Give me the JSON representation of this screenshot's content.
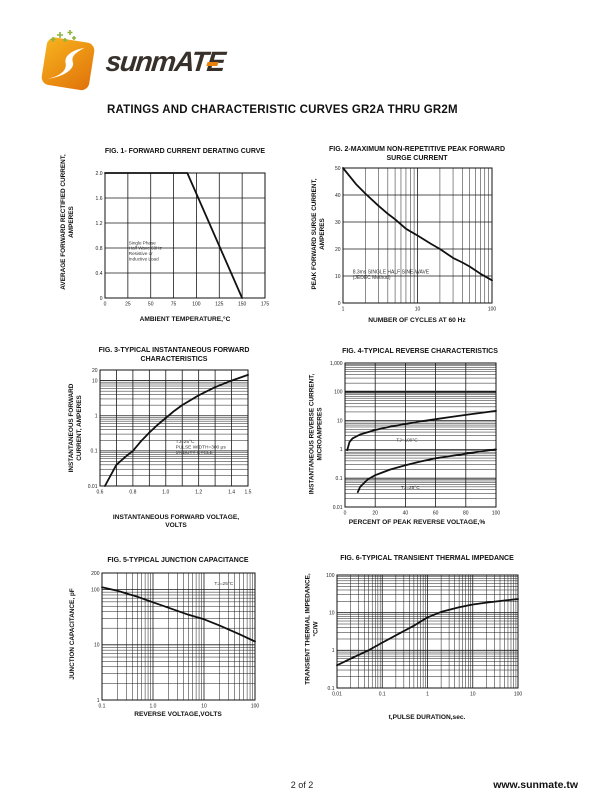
{
  "header": {
    "brand": "sunmATE",
    "title": "RATINGS AND CHARACTERISTIC CURVES GR2A THRU GR2M"
  },
  "footer": {
    "page": "2 of 2",
    "website": "www.sunmate.tw"
  },
  "colors": {
    "logo_orange_light": "#F7B31E",
    "logo_orange_dark": "#E0720A",
    "logo_green": "#8BB53F",
    "ink": "#1a1a1a"
  },
  "chart_data": [
    {
      "type": "line",
      "title": "FIG. 1- FORWARD CURRENT DERATING CURVE",
      "ylabel": "AVERAGE FORWARD RECTIFIED CURRENT,\nAMPERES",
      "xlabel": "AMBIENT TEMPERATURE,°C",
      "x": {
        "scale": "linear",
        "min": 0,
        "max": 175,
        "grid": [
          0,
          25,
          50,
          75,
          100,
          125,
          150,
          175
        ],
        "ticks": [
          [
            0,
            "0"
          ],
          [
            25,
            "25"
          ],
          [
            50,
            "50"
          ],
          [
            75,
            "75"
          ],
          [
            100,
            "100"
          ],
          [
            125,
            "125"
          ],
          [
            150,
            "150"
          ],
          [
            175,
            "175"
          ]
        ]
      },
      "y": {
        "scale": "linear",
        "min": 0,
        "max": 2,
        "grid": [
          0,
          0.4,
          0.8,
          1.2,
          1.6,
          2
        ],
        "ticks": [
          [
            0,
            "0"
          ],
          [
            0.4,
            "0.4"
          ],
          [
            0.8,
            "0.8"
          ],
          [
            1.2,
            "1.2"
          ],
          [
            1.6,
            "1.6"
          ],
          [
            2,
            "2.0"
          ]
        ]
      },
      "series": [
        {
          "name": "derating-curve",
          "points": [
            [
              0,
              2
            ],
            [
              90,
              2
            ],
            [
              150,
              0
            ]
          ]
        }
      ],
      "annotations": [
        {
          "x": 26,
          "y": 0.86,
          "align": "start",
          "size": 4.6,
          "text": "Single Phase\nHalf Wave 60Hz\nResistive or\nInductive Load"
        }
      ]
    },
    {
      "type": "line",
      "title": "FIG. 2-MAXIMUM NON-REPETITIVE PEAK FORWARD\nSURGE CURRENT",
      "ylabel": "PEAK FORWARD SURGE CURRENT,\nAMPERES",
      "xlabel": "NUMBER OF CYCLES AT 60 Hz",
      "x": {
        "scale": "log",
        "min": 1,
        "max": 100,
        "ticks": [
          [
            1,
            "1"
          ],
          [
            10,
            "10"
          ],
          [
            100,
            "100"
          ]
        ]
      },
      "y": {
        "scale": "linear",
        "min": 0,
        "max": 50,
        "grid": [
          0,
          10,
          20,
          30,
          40,
          50
        ],
        "ticks": [
          [
            0,
            "0"
          ],
          [
            10,
            "10"
          ],
          [
            20,
            "20"
          ],
          [
            30,
            "30"
          ],
          [
            40,
            "40"
          ],
          [
            50,
            "50"
          ]
        ]
      },
      "series": [
        {
          "name": "surge-current",
          "points": [
            [
              1,
              50
            ],
            [
              1.5,
              44
            ],
            [
              2,
              40.5
            ],
            [
              3,
              36
            ],
            [
              4,
              33
            ],
            [
              5,
              31
            ],
            [
              7,
              27.5
            ],
            [
              10,
              25
            ],
            [
              15,
              22
            ],
            [
              20,
              20
            ],
            [
              30,
              16.7
            ],
            [
              40,
              15
            ],
            [
              50,
              13.5
            ],
            [
              70,
              10.8
            ],
            [
              100,
              8.4
            ]
          ]
        }
      ],
      "annotations": [
        {
          "x": 1.35,
          "y": 11,
          "align": "start",
          "size": 5,
          "text": "8.3ms SINGLE HALF SINE-WAVE\n(JEDEC Method)"
        }
      ]
    },
    {
      "type": "line",
      "title": "FIG. 3-TYPICAL INSTANTANEOUS FORWARD\nCHARACTERISTICS",
      "ylabel": "INSTANTANEOUS FORWARD\nCURRENT, AMPERES",
      "xlabel": "INSTANTANEOUS FORWARD VOLTAGE,\nVOLTS",
      "x": {
        "scale": "linear",
        "min": 0.6,
        "max": 1.5,
        "grid": [
          0.6,
          0.7,
          0.8,
          0.9,
          1.0,
          1.1,
          1.2,
          1.3,
          1.4,
          1.5
        ],
        "ticks": [
          [
            0.6,
            "0.6"
          ],
          [
            0.8,
            "0.8"
          ],
          [
            1.0,
            "1.0"
          ],
          [
            1.2,
            "1.2"
          ],
          [
            1.4,
            "1.4"
          ],
          [
            1.5,
            "1.5"
          ]
        ]
      },
      "y": {
        "scale": "log",
        "min": 0.01,
        "max": 20,
        "ticks": [
          [
            0.01,
            "0.01"
          ],
          [
            0.1,
            "0.1"
          ],
          [
            1,
            "1"
          ],
          [
            10,
            "10"
          ],
          [
            20,
            "20"
          ]
        ]
      },
      "series": [
        {
          "name": "forward-characteristic",
          "points": [
            [
              0.63,
              0.01
            ],
            [
              0.7,
              0.04
            ],
            [
              0.75,
              0.065
            ],
            [
              0.8,
              0.1
            ],
            [
              0.85,
              0.19
            ],
            [
              0.9,
              0.33
            ],
            [
              0.95,
              0.55
            ],
            [
              1.0,
              0.86
            ],
            [
              1.05,
              1.35
            ],
            [
              1.1,
              2.0
            ],
            [
              1.2,
              3.8
            ],
            [
              1.3,
              6.5
            ],
            [
              1.4,
              10
            ],
            [
              1.5,
              14.5
            ]
          ]
        }
      ],
      "annotations": [
        {
          "x": 1.06,
          "y": 0.17,
          "align": "start",
          "size": 4.8,
          "text": "TJ=25°C\nPULSE WIDTH=300 μs\n1%DUTY CYCLE"
        }
      ]
    },
    {
      "type": "line",
      "title": "FIG. 4-TYPICAL REVERSE CHARACTERISTICS",
      "ylabel": "INSTANTANEOUS REVERSE CURRENT,\nMICROAMPERES",
      "xlabel": "PERCENT OF PEAK REVERSE VOLTAGE,%",
      "x": {
        "scale": "linear",
        "min": 0,
        "max": 100,
        "grid": [
          0,
          20,
          40,
          60,
          80,
          100
        ],
        "ticks": [
          [
            0,
            "0"
          ],
          [
            20,
            "20"
          ],
          [
            40,
            "40"
          ],
          [
            60,
            "60"
          ],
          [
            80,
            "80"
          ],
          [
            100,
            "100"
          ]
        ]
      },
      "y": {
        "scale": "log",
        "min": 0.01,
        "max": 1000,
        "bold": [
          100
        ],
        "ticks": [
          [
            0.01,
            "0.01"
          ],
          [
            0.1,
            "0.1"
          ],
          [
            1,
            "1"
          ],
          [
            10,
            "10"
          ],
          [
            100,
            "100"
          ],
          [
            1000,
            "1,000"
          ]
        ]
      },
      "series": [
        {
          "name": "tj-100c",
          "points": [
            [
              1.5,
              0.95
            ],
            [
              3,
              1.8
            ],
            [
              5,
              2.4
            ],
            [
              10,
              3.3
            ],
            [
              20,
              4.7
            ],
            [
              30,
              6.2
            ],
            [
              40,
              7.6
            ],
            [
              50,
              9.4
            ],
            [
              60,
              11.2
            ],
            [
              70,
              13.3
            ],
            [
              80,
              15.8
            ],
            [
              90,
              18.5
            ],
            [
              100,
              21.8
            ]
          ]
        },
        {
          "name": "tj-25c",
          "points": [
            [
              8.5,
              0.033
            ],
            [
              10,
              0.05
            ],
            [
              15,
              0.09
            ],
            [
              20,
              0.127
            ],
            [
              30,
              0.2
            ],
            [
              40,
              0.28
            ],
            [
              50,
              0.38
            ],
            [
              60,
              0.49
            ],
            [
              70,
              0.59
            ],
            [
              80,
              0.71
            ],
            [
              90,
              0.85
            ],
            [
              100,
              1.0
            ]
          ]
        }
      ],
      "annotations": [
        {
          "x": 34,
          "y": 1.9,
          "align": "start",
          "size": 4.8,
          "text": "TJ=100°C"
        },
        {
          "x": 37,
          "y": 0.042,
          "align": "start",
          "size": 4.8,
          "text": "TJ=25°C"
        }
      ]
    },
    {
      "type": "line",
      "title": "FIG. 5-TYPICAL JUNCTION CAPACITANCE",
      "ylabel": "JUNCTION CAPACITANCE, pF",
      "xlabel": "REVERSE VOLTAGE,VOLTS",
      "x": {
        "scale": "log",
        "min": 0.1,
        "max": 100,
        "ticks": [
          [
            0.1,
            "0.1"
          ],
          [
            1,
            "1.0"
          ],
          [
            10,
            "10"
          ],
          [
            100,
            "100"
          ]
        ]
      },
      "y": {
        "scale": "log",
        "min": 1,
        "max": 200,
        "ticks": [
          [
            1,
            "1"
          ],
          [
            10,
            "10"
          ],
          [
            100,
            "100"
          ],
          [
            200,
            "200"
          ]
        ]
      },
      "series": [
        {
          "name": "junction-capacitance",
          "points": [
            [
              0.1,
              110
            ],
            [
              0.2,
              95
            ],
            [
              0.5,
              74
            ],
            [
              1,
              59
            ],
            [
              2,
              47
            ],
            [
              5,
              35
            ],
            [
              10,
              29
            ],
            [
              20,
              22.5
            ],
            [
              50,
              15.5
            ],
            [
              100,
              11.5
            ]
          ]
        }
      ],
      "annotations": [
        {
          "x": 16,
          "y": 120,
          "align": "start",
          "size": 4.8,
          "text": "TJ=25°C"
        }
      ]
    },
    {
      "type": "line",
      "title": "FIG. 6-TYPICAL TRANSIENT THERMAL IMPEDANCE",
      "ylabel": "TRANSIENT THERMAL IMPEDANCE,\n°C/W",
      "xlabel": "t,PULSE DURATION,sec.",
      "x": {
        "scale": "log",
        "min": 0.01,
        "max": 100,
        "ticks": [
          [
            0.01,
            "0.01"
          ],
          [
            0.1,
            "0.1"
          ],
          [
            1,
            "1"
          ],
          [
            10,
            "10"
          ],
          [
            100,
            "100"
          ]
        ]
      },
      "y": {
        "scale": "log",
        "min": 0.1,
        "max": 100,
        "ticks": [
          [
            0.1,
            "0.1"
          ],
          [
            1,
            "1"
          ],
          [
            10,
            "10"
          ],
          [
            100,
            "100"
          ]
        ]
      },
      "series": [
        {
          "name": "thermal-impedance",
          "points": [
            [
              0.01,
              0.4
            ],
            [
              0.02,
              0.6
            ],
            [
              0.05,
              1.0
            ],
            [
              0.1,
              1.6
            ],
            [
              0.2,
              2.5
            ],
            [
              0.5,
              4.5
            ],
            [
              1,
              7.5
            ],
            [
              2,
              10.5
            ],
            [
              5,
              14
            ],
            [
              10,
              16.5
            ],
            [
              20,
              18.5
            ],
            [
              50,
              21
            ],
            [
              100,
              23
            ]
          ]
        }
      ],
      "annotations": []
    }
  ]
}
